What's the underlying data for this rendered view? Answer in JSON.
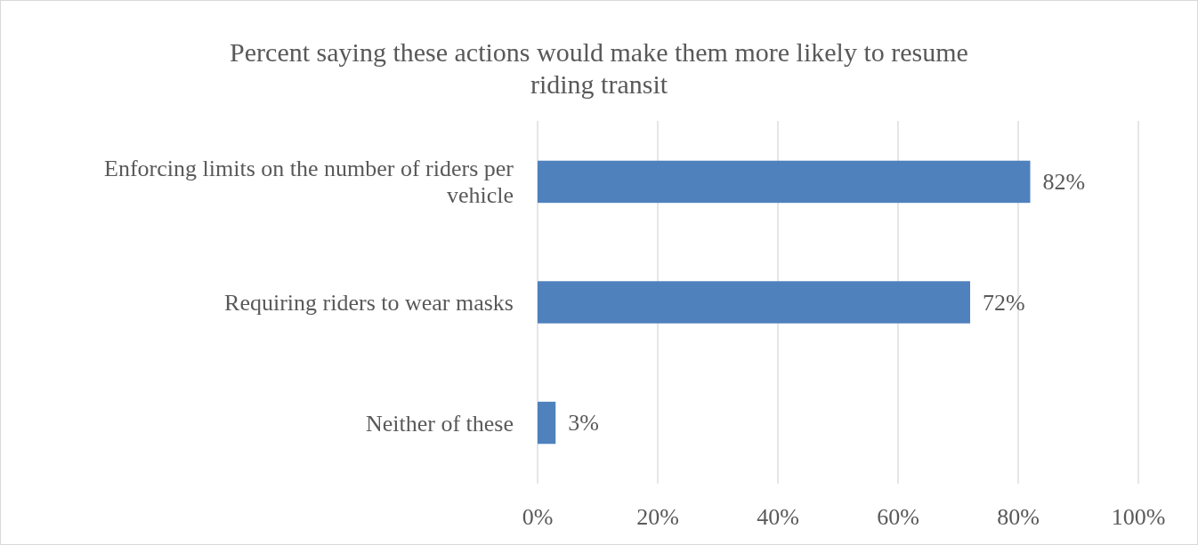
{
  "chart_data": {
    "type": "bar",
    "orientation": "horizontal",
    "title": "Percent saying these actions would make them more likely to resume riding transit",
    "categories": [
      "Enforcing limits on the number of riders per vehicle",
      "Requiring riders to wear masks",
      "Neither of these"
    ],
    "values": [
      82,
      72,
      3
    ],
    "value_labels": [
      "82%",
      "72%",
      "3%"
    ],
    "color": "#4f81bd",
    "xlim": [
      0,
      100
    ],
    "xticks": [
      {
        "value": 0,
        "label": "0%"
      },
      {
        "value": 20,
        "label": "20%"
      },
      {
        "value": 40,
        "label": "40%"
      },
      {
        "value": 60,
        "label": "60%"
      },
      {
        "value": 80,
        "label": "80%"
      },
      {
        "value": 100,
        "label": "100%"
      }
    ],
    "grid": "x"
  }
}
